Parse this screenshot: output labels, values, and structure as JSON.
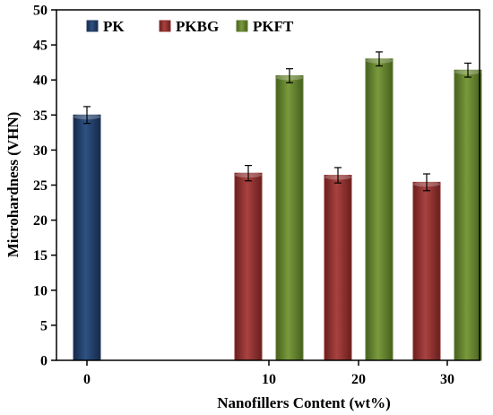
{
  "chart_data": {
    "type": "bar",
    "title": "",
    "xlabel": "Nanofillers Content (wt%)",
    "ylabel": "Microhardness (VHN)",
    "ylim": [
      0,
      50
    ],
    "yticks": [
      0,
      5,
      10,
      15,
      20,
      25,
      30,
      35,
      40,
      45,
      50
    ],
    "categories": [
      "0",
      "10",
      "20",
      "30"
    ],
    "legend_position": "top-left",
    "grid": false,
    "series": [
      {
        "name": "PK",
        "color": "#1f3a5f",
        "values": [
          35.0,
          null,
          null,
          null
        ],
        "errors": [
          1.2,
          null,
          null,
          null
        ]
      },
      {
        "name": "PKBG",
        "color": "#8b2e2b",
        "values": [
          null,
          26.7,
          26.4,
          25.4
        ],
        "errors": [
          null,
          1.1,
          1.1,
          1.2
        ]
      },
      {
        "name": "PKFT",
        "color": "#5e7a2c",
        "values": [
          null,
          40.6,
          43.0,
          41.4
        ],
        "errors": [
          null,
          1.0,
          1.0,
          1.0
        ]
      }
    ]
  }
}
